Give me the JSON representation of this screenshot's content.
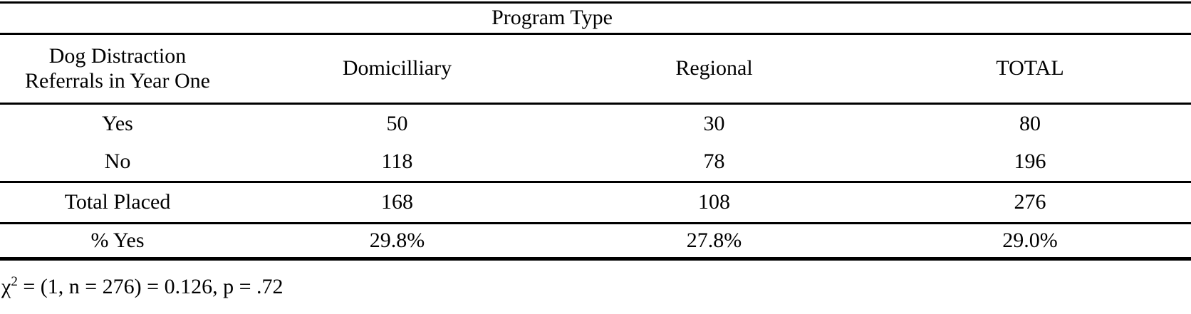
{
  "page": {
    "background_color": "#ffffff",
    "text_color": "#000000"
  },
  "table": {
    "spanning_header": "Program Type",
    "stub_header": {
      "line1": "Dog Distraction",
      "line2": "Referrals in Year One"
    },
    "column_headers": [
      "Domicilliary",
      "Regional",
      "TOTAL"
    ],
    "rows": [
      {
        "label": "Yes",
        "values": [
          "50",
          "30",
          "80"
        ]
      },
      {
        "label": "No",
        "values": [
          "118",
          "78",
          "196"
        ]
      },
      {
        "label": "Total Placed",
        "values": [
          "168",
          "108",
          "276"
        ]
      },
      {
        "label": "% Yes",
        "values": [
          "29.8%",
          "27.8%",
          "29.0%"
        ]
      }
    ]
  },
  "footnote": {
    "chi": "χ",
    "exponent": "2",
    "rest": " = (1, n = 276) = 0.126, p = .72"
  },
  "chart_data": {
    "type": "table",
    "title": "Program Type",
    "row_variable": "Dog Distraction Referrals in Year One",
    "columns": [
      "Domicilliary",
      "Regional",
      "TOTAL"
    ],
    "rows": [
      {
        "label": "Yes",
        "values": [
          50,
          30,
          80
        ]
      },
      {
        "label": "No",
        "values": [
          118,
          78,
          196
        ]
      },
      {
        "label": "Total Placed",
        "values": [
          168,
          108,
          276
        ]
      },
      {
        "label": "% Yes",
        "values": [
          "29.8%",
          "27.8%",
          "29.0%"
        ]
      }
    ],
    "note": "χ2 = (1, n = 276) = 0.126, p = .72"
  }
}
